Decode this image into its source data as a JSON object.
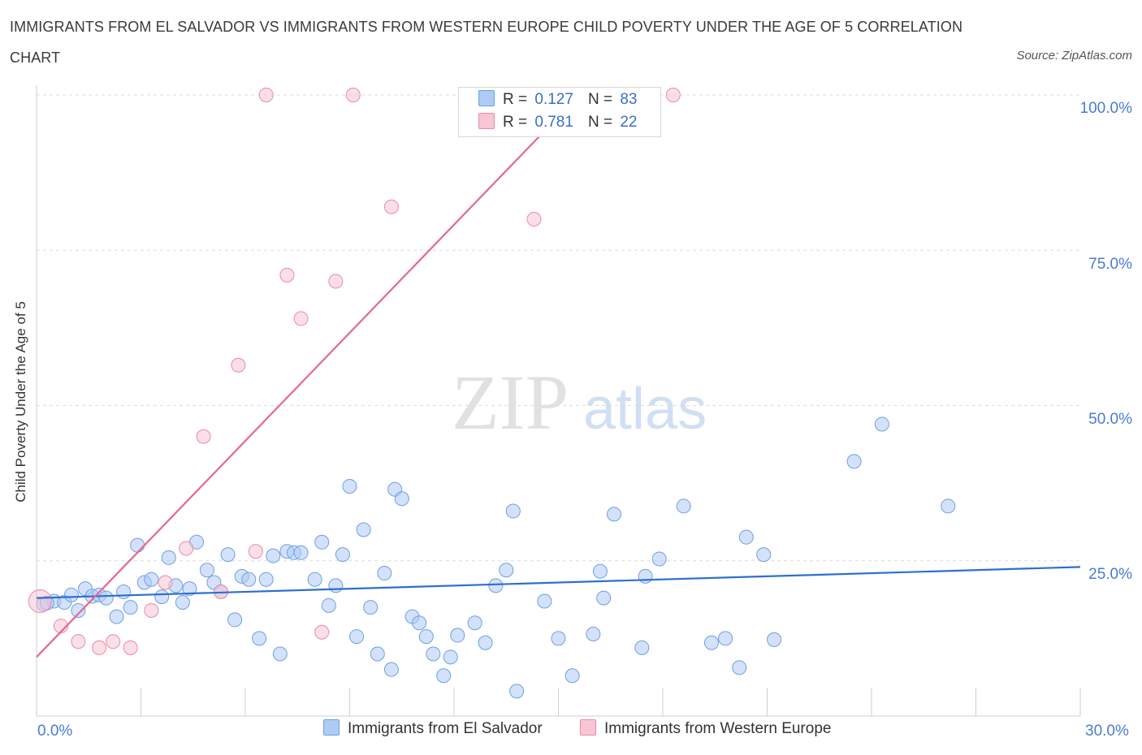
{
  "header": {
    "title": "IMMIGRANTS FROM EL SALVADOR VS IMMIGRANTS FROM WESTERN EUROPE CHILD POVERTY UNDER THE AGE OF 5 CORRELATION CHART",
    "source": "Source: ZipAtlas.com"
  },
  "watermark": {
    "zip": "ZIP",
    "atlas": "atlas"
  },
  "legend_top": {
    "r_label": "R =",
    "n_label": "N =",
    "rows": [
      {
        "r": "0.127",
        "n": "83",
        "color": "#aecbf5",
        "border": "#6f9fe0"
      },
      {
        "r": "0.781",
        "n": "22",
        "color": "#f8c5d3",
        "border": "#e98aa6"
      }
    ]
  },
  "chart_data": {
    "type": "scatter",
    "ylabel": "Child Poverty Under the Age of 5",
    "xlim": [
      0,
      30
    ],
    "ylim": [
      0,
      100
    ],
    "x_ticks": [
      "0.0%",
      "30.0%"
    ],
    "y_ticks": [
      {
        "value": 100,
        "label": "100.0%"
      },
      {
        "value": 75,
        "label": "75.0%"
      },
      {
        "value": 50,
        "label": "50.0%"
      },
      {
        "value": 25,
        "label": "25.0%"
      }
    ],
    "grid": "horizontal dashed",
    "legend_position": "bottom-center",
    "series": [
      {
        "name": "Immigrants from El Salvador",
        "color": "#aecbf5",
        "stroke": "#6f9fe0",
        "trend": {
          "x": [
            0,
            30
          ],
          "y": [
            19.0,
            24.0
          ],
          "color": "#2e6fcf"
        },
        "points": [
          [
            0.2,
            18.0
          ],
          [
            0.5,
            18.5
          ],
          [
            0.8,
            18.3
          ],
          [
            1.0,
            19.5
          ],
          [
            1.2,
            17.0
          ],
          [
            1.4,
            20.5
          ],
          [
            1.6,
            19.3
          ],
          [
            1.8,
            19.5
          ],
          [
            2.0,
            19.0
          ],
          [
            2.3,
            16.0
          ],
          [
            2.5,
            20.0
          ],
          [
            2.7,
            17.5
          ],
          [
            2.9,
            27.5
          ],
          [
            3.1,
            21.5
          ],
          [
            3.3,
            22.0
          ],
          [
            3.6,
            19.2
          ],
          [
            3.8,
            25.5
          ],
          [
            4.0,
            21.0
          ],
          [
            4.2,
            18.3
          ],
          [
            4.4,
            20.5
          ],
          [
            4.6,
            28.0
          ],
          [
            4.9,
            23.5
          ],
          [
            5.1,
            21.5
          ],
          [
            5.3,
            20.0
          ],
          [
            5.5,
            26.0
          ],
          [
            5.7,
            15.5
          ],
          [
            5.9,
            22.5
          ],
          [
            6.1,
            22.0
          ],
          [
            6.4,
            12.5
          ],
          [
            6.6,
            22.0
          ],
          [
            6.8,
            25.8
          ],
          [
            7.0,
            10.0
          ],
          [
            7.2,
            26.5
          ],
          [
            7.4,
            26.3
          ],
          [
            7.6,
            26.3
          ],
          [
            8.0,
            22.0
          ],
          [
            8.2,
            28.0
          ],
          [
            8.4,
            17.8
          ],
          [
            8.6,
            21.0
          ],
          [
            8.8,
            26.0
          ],
          [
            9.0,
            37.0
          ],
          [
            9.2,
            12.8
          ],
          [
            9.4,
            30.0
          ],
          [
            9.6,
            17.5
          ],
          [
            9.8,
            10.0
          ],
          [
            10.0,
            23.0
          ],
          [
            10.2,
            7.5
          ],
          [
            10.3,
            36.5
          ],
          [
            10.5,
            35.0
          ],
          [
            10.8,
            16.0
          ],
          [
            11.0,
            15.0
          ],
          [
            11.2,
            12.8
          ],
          [
            11.4,
            10.0
          ],
          [
            11.7,
            6.5
          ],
          [
            11.9,
            9.5
          ],
          [
            12.1,
            13.0
          ],
          [
            12.6,
            15.0
          ],
          [
            12.9,
            11.8
          ],
          [
            13.2,
            21.0
          ],
          [
            13.5,
            23.5
          ],
          [
            13.7,
            33.0
          ],
          [
            13.8,
            4.0
          ],
          [
            14.6,
            18.5
          ],
          [
            15.0,
            12.5
          ],
          [
            15.4,
            6.5
          ],
          [
            16.0,
            13.2
          ],
          [
            16.2,
            23.3
          ],
          [
            16.3,
            19.0
          ],
          [
            16.6,
            32.5
          ],
          [
            17.4,
            11.0
          ],
          [
            17.5,
            22.5
          ],
          [
            17.9,
            25.3
          ],
          [
            18.6,
            33.8
          ],
          [
            19.4,
            11.8
          ],
          [
            19.8,
            12.5
          ],
          [
            20.2,
            7.8
          ],
          [
            20.4,
            28.8
          ],
          [
            20.9,
            26.0
          ],
          [
            21.2,
            12.3
          ],
          [
            23.5,
            41.0
          ],
          [
            24.3,
            47.0
          ],
          [
            26.2,
            33.8
          ],
          [
            0.3,
            18.2
          ]
        ]
      },
      {
        "name": "Immigrants from Western Europe",
        "color": "#f8c5d3",
        "stroke": "#e98aa6",
        "trend": {
          "x": [
            0,
            15.6
          ],
          "y": [
            9.5,
            100.0
          ],
          "color": "#e4688f"
        },
        "points": [
          [
            0.1,
            18.5
          ],
          [
            0.7,
            14.5
          ],
          [
            1.2,
            12.0
          ],
          [
            1.8,
            11.0
          ],
          [
            2.2,
            12.0
          ],
          [
            2.7,
            11.0
          ],
          [
            3.3,
            17.0
          ],
          [
            3.7,
            21.5
          ],
          [
            4.3,
            27.0
          ],
          [
            4.8,
            45.0
          ],
          [
            5.3,
            20.0
          ],
          [
            5.8,
            56.5
          ],
          [
            6.3,
            26.5
          ],
          [
            6.6,
            100.0
          ],
          [
            7.2,
            71.0
          ],
          [
            7.6,
            64.0
          ],
          [
            8.2,
            13.5
          ],
          [
            8.6,
            70.0
          ],
          [
            9.1,
            100.0
          ],
          [
            10.2,
            82.0
          ],
          [
            14.3,
            80.0
          ],
          [
            18.3,
            100.0
          ]
        ]
      }
    ]
  }
}
